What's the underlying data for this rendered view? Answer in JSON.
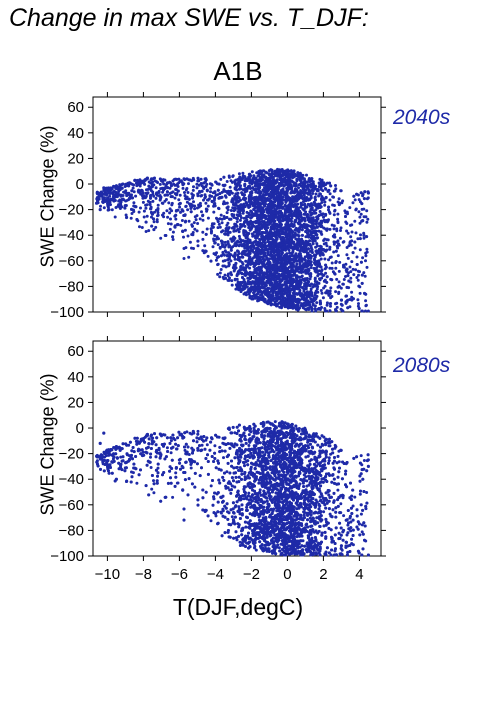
{
  "figure": {
    "title": "Change in max SWE vs. T_DJF:",
    "scenario": "A1B",
    "xlabel": "T(DJF,degC)",
    "ylabel": "SWE Change (%)",
    "marker_color": "#1e2aa8"
  },
  "chart_data": [
    {
      "type": "scatter",
      "panel": "2040s",
      "xlabel": "T(DJF,degC)",
      "ylabel": "SWE Change (%)",
      "xlim": [
        -10.8,
        5.2
      ],
      "ylim": [
        -100,
        68
      ],
      "xticks": [
        -10,
        -8,
        -6,
        -4,
        -2,
        0,
        2,
        4
      ],
      "yticks": [
        -100,
        -80,
        -60,
        -40,
        -20,
        0,
        20,
        40,
        60
      ],
      "envelope": {
        "description": "dense cloud of points",
        "x_range": [
          -10.6,
          4.5
        ],
        "core_x": [
          -3,
          2
        ],
        "y_max_at_x": [
          [
            -10.5,
            -5
          ],
          [
            -8,
            5
          ],
          [
            -4,
            5
          ],
          [
            -2,
            10
          ],
          [
            0,
            12
          ],
          [
            2,
            3
          ],
          [
            3.5,
            -5
          ]
        ],
        "y_min_at_x": [
          [
            -10.5,
            -20
          ],
          [
            -8,
            -38
          ],
          [
            -6,
            -58
          ],
          [
            -4,
            -72
          ],
          [
            -2,
            -90
          ],
          [
            0,
            -98
          ],
          [
            2,
            -100
          ],
          [
            3.5,
            -100
          ]
        ]
      },
      "outliers": [
        [
          -10.6,
          -15
        ],
        [
          -10.4,
          -20
        ],
        [
          -10.2,
          -3
        ],
        [
          -9.5,
          -8
        ],
        [
          4.3,
          -6
        ],
        [
          4.5,
          -7
        ],
        [
          4.2,
          -8
        ]
      ]
    },
    {
      "type": "scatter",
      "panel": "2080s",
      "xlabel": "T(DJF,degC)",
      "ylabel": "SWE Change (%)",
      "xlim": [
        -10.8,
        5.2
      ],
      "ylim": [
        -100,
        68
      ],
      "xticks": [
        -10,
        -8,
        -6,
        -4,
        -2,
        0,
        2,
        4
      ],
      "yticks": [
        -100,
        -80,
        -60,
        -40,
        -20,
        0,
        20,
        40,
        60
      ],
      "envelope": {
        "description": "dense cloud of points, shifted lower than 2040s",
        "x_range": [
          -10.6,
          4.5
        ],
        "core_x": [
          -3,
          2.5
        ],
        "y_max_at_x": [
          [
            -10.5,
            -20
          ],
          [
            -8,
            -5
          ],
          [
            -6,
            -2
          ],
          [
            -4,
            -2
          ],
          [
            -2,
            5
          ],
          [
            0,
            5
          ],
          [
            2,
            -5
          ],
          [
            3.5,
            -20
          ]
        ],
        "y_min_at_x": [
          [
            -10.5,
            -35
          ],
          [
            -8,
            -55
          ],
          [
            -6,
            -72
          ],
          [
            -4,
            -85
          ],
          [
            -2,
            -95
          ],
          [
            0,
            -100
          ],
          [
            2,
            -100
          ],
          [
            3.5,
            -100
          ]
        ]
      },
      "outliers": [
        [
          -10.6,
          -22
        ],
        [
          -10.4,
          -12
        ],
        [
          -10.2,
          -4
        ],
        [
          -9.5,
          -40
        ],
        [
          4.5,
          -30
        ],
        [
          4.1,
          -60
        ],
        [
          4.0,
          -75
        ]
      ]
    }
  ]
}
